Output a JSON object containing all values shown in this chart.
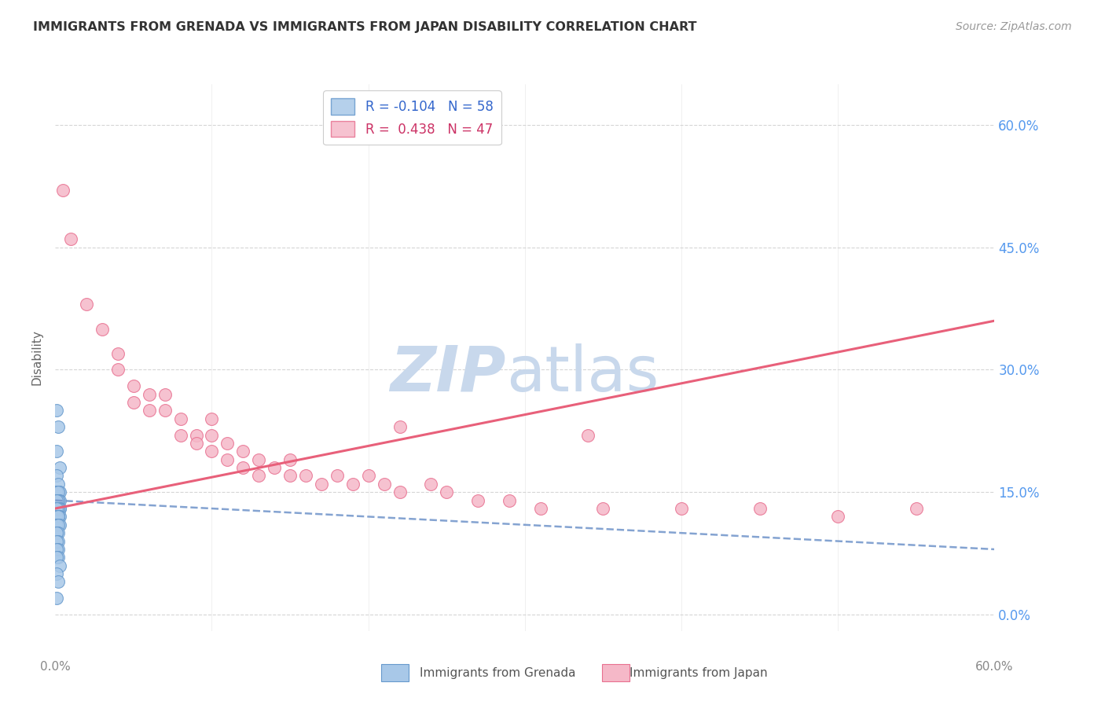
{
  "title": "IMMIGRANTS FROM GRENADA VS IMMIGRANTS FROM JAPAN DISABILITY CORRELATION CHART",
  "source": "Source: ZipAtlas.com",
  "ylabel": "Disability",
  "ytick_labels": [
    "0.0%",
    "15.0%",
    "30.0%",
    "45.0%",
    "60.0%"
  ],
  "ytick_vals": [
    0.0,
    0.15,
    0.3,
    0.45,
    0.6
  ],
  "xlim": [
    0.0,
    0.6
  ],
  "ylim": [
    -0.02,
    0.65
  ],
  "blue_color": "#a8c8e8",
  "blue_edge_color": "#6699cc",
  "pink_color": "#f5b8c8",
  "pink_edge_color": "#e87090",
  "trendline_blue_color": "#7799cc",
  "trendline_pink_color": "#e8607a",
  "watermark_zip_color": "#c8d8ec",
  "watermark_atlas_color": "#c8d8ec",
  "background_color": "#ffffff",
  "grid_color": "#cccccc",
  "ytick_color": "#5599ee",
  "xtick_color": "#888888",
  "ylabel_color": "#666666",
  "title_color": "#333333",
  "source_color": "#999999",
  "grenada_x": [
    0.001,
    0.002,
    0.001,
    0.003,
    0.001,
    0.002,
    0.001,
    0.002,
    0.003,
    0.001,
    0.002,
    0.001,
    0.002,
    0.001,
    0.003,
    0.001,
    0.002,
    0.001,
    0.002,
    0.001,
    0.003,
    0.001,
    0.002,
    0.001,
    0.002,
    0.001,
    0.003,
    0.001,
    0.002,
    0.001,
    0.002,
    0.001,
    0.002,
    0.001,
    0.003,
    0.001,
    0.002,
    0.001,
    0.002,
    0.001,
    0.002,
    0.001,
    0.003,
    0.001,
    0.002,
    0.001,
    0.002,
    0.001,
    0.002,
    0.001,
    0.002,
    0.001,
    0.002,
    0.001,
    0.003,
    0.001,
    0.002,
    0.001
  ],
  "grenada_y": [
    0.25,
    0.23,
    0.2,
    0.18,
    0.17,
    0.16,
    0.15,
    0.15,
    0.15,
    0.15,
    0.15,
    0.14,
    0.14,
    0.14,
    0.14,
    0.14,
    0.14,
    0.14,
    0.14,
    0.14,
    0.13,
    0.13,
    0.13,
    0.13,
    0.13,
    0.13,
    0.13,
    0.13,
    0.13,
    0.13,
    0.13,
    0.13,
    0.12,
    0.12,
    0.12,
    0.12,
    0.12,
    0.12,
    0.12,
    0.12,
    0.12,
    0.11,
    0.11,
    0.11,
    0.11,
    0.1,
    0.1,
    0.1,
    0.09,
    0.09,
    0.08,
    0.08,
    0.07,
    0.07,
    0.06,
    0.05,
    0.04,
    0.02
  ],
  "japan_x": [
    0.005,
    0.01,
    0.02,
    0.03,
    0.04,
    0.04,
    0.05,
    0.05,
    0.06,
    0.06,
    0.07,
    0.07,
    0.08,
    0.08,
    0.09,
    0.09,
    0.1,
    0.1,
    0.11,
    0.11,
    0.12,
    0.12,
    0.13,
    0.13,
    0.14,
    0.15,
    0.15,
    0.16,
    0.17,
    0.18,
    0.19,
    0.2,
    0.21,
    0.22,
    0.24,
    0.25,
    0.27,
    0.29,
    0.31,
    0.35,
    0.4,
    0.45,
    0.5,
    0.55,
    0.34,
    0.22,
    0.1
  ],
  "japan_y": [
    0.52,
    0.46,
    0.38,
    0.35,
    0.32,
    0.3,
    0.28,
    0.26,
    0.27,
    0.25,
    0.27,
    0.25,
    0.24,
    0.22,
    0.22,
    0.21,
    0.22,
    0.2,
    0.21,
    0.19,
    0.2,
    0.18,
    0.19,
    0.17,
    0.18,
    0.19,
    0.17,
    0.17,
    0.16,
    0.17,
    0.16,
    0.17,
    0.16,
    0.15,
    0.16,
    0.15,
    0.14,
    0.14,
    0.13,
    0.13,
    0.13,
    0.13,
    0.12,
    0.13,
    0.22,
    0.23,
    0.24
  ],
  "blue_trend_x": [
    0.0,
    0.6
  ],
  "blue_trend_y": [
    0.14,
    0.08
  ],
  "pink_trend_x": [
    0.0,
    0.6
  ],
  "pink_trend_y": [
    0.13,
    0.36
  ]
}
